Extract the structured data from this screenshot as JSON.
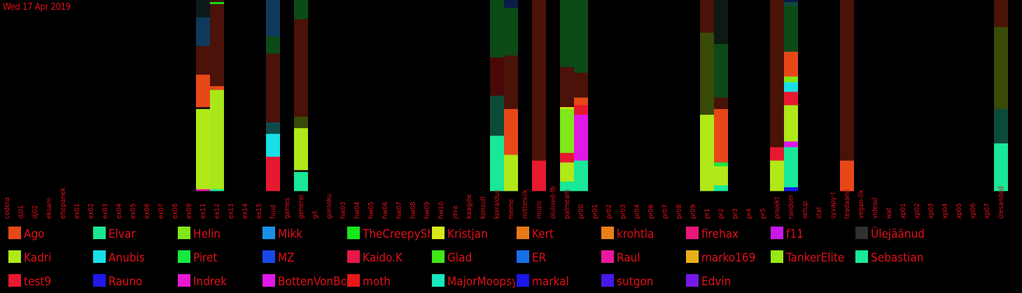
{
  "date": "Wed 17 Apr 2019",
  "chart_data": {
    "type": "bar",
    "stacked": true,
    "normalized_to_100": true,
    "title": "Wed 17 Apr 2019",
    "xlabel": "",
    "ylabel": "",
    "grid": false,
    "legend_position": "bottom",
    "categories": [
      "codera",
      "dj01",
      "dj02",
      "eksam",
      "eltepanek",
      "ex01",
      "ex02",
      "ex03",
      "ex04",
      "ex05",
      "ex06",
      "ex07",
      "ex08",
      "ex09",
      "ex11",
      "ex12",
      "ex13",
      "ex14",
      "ex15",
      "fuud",
      "games",
      "general",
      "git",
      "gomoku",
      "hw03",
      "hw04",
      "hw05",
      "hw06",
      "hw07",
      "hw08",
      "hw09",
      "hw10",
      "java",
      "kaagjõe",
      "konsult",
      "korraldus",
      "meme",
      "mitteniiik",
      "music",
      "olulised-fb",
      "palmeam",
      "pr00",
      "pr01",
      "pr02",
      "pr03",
      "pr04",
      "pr06",
      "pr07",
      "pr08",
      "pr09",
      "pr1",
      "pr2",
      "pr3",
      "pr4",
      "pr5",
      "projekt",
      "random",
      "setup",
      "stat",
      "syvapy-t",
      "teadaand",
      "vegan-tik",
      "videod",
      "wat",
      "xp01",
      "xp02",
      "xp03",
      "xp04",
      "xp05",
      "xp06",
      "xp07",
      "ülesanded"
    ],
    "users": [
      {
        "name": "Ago",
        "color": "#e84818"
      },
      {
        "name": "Elvar",
        "color": "#18e890"
      },
      {
        "name": "Helin",
        "color": "#80e818"
      },
      {
        "name": "Mikk",
        "color": "#1890e8"
      },
      {
        "name": "TheCreepySh",
        "color": "#18e818"
      },
      {
        "name": "Kristjan",
        "color": "#d8e818"
      },
      {
        "name": "Kert",
        "color": "#e87818"
      },
      {
        "name": "krohtla",
        "color": "#e88018"
      },
      {
        "name": "firehax",
        "color": "#e81878"
      },
      {
        "name": "f11",
        "color": "#c818e8"
      },
      {
        "name": "Ülejäänud",
        "color": "#303030"
      },
      {
        "name": "Kadri",
        "color": "#b0e818"
      },
      {
        "name": "Anubis",
        "color": "#18e0e8"
      },
      {
        "name": "Piret",
        "color": "#18e840"
      },
      {
        "name": "MZ",
        "color": "#1848e8"
      },
      {
        "name": "Kaido.K",
        "color": "#e81848"
      },
      {
        "name": "Glad",
        "color": "#40e818"
      },
      {
        "name": "ER",
        "color": "#1870e8"
      },
      {
        "name": "Raul",
        "color": "#e818a0"
      },
      {
        "name": "marko169",
        "color": "#e8b018"
      },
      {
        "name": "TankerElite",
        "color": "#98e818"
      },
      {
        "name": "Sebastian",
        "color": "#18e898"
      },
      {
        "name": "test9",
        "color": "#e81830"
      },
      {
        "name": "Rauno",
        "color": "#2018e8"
      },
      {
        "name": "Indrek",
        "color": "#e818d0"
      },
      {
        "name": "BottenVonBot",
        "color": "#e018e8"
      },
      {
        "name": "moth",
        "color": "#e81818"
      },
      {
        "name": "MajorMoopsy",
        "color": "#18e8c0"
      },
      {
        "name": "markal",
        "color": "#1818e8"
      },
      {
        "name": "sutgon",
        "color": "#4818e8"
      },
      {
        "name": "Edvin",
        "color": "#7818e8"
      }
    ],
    "bars": [
      {
        "category": "ex11",
        "segments": [
          [
            "#e818a0",
            1
          ],
          [
            "#b0e818",
            42
          ],
          [
            "#101010",
            1
          ],
          [
            "#e84818",
            17
          ],
          [
            "#4a1208",
            15
          ],
          [
            "#0f3a5c",
            15
          ],
          [
            "#0c1a1a",
            9
          ]
        ]
      },
      {
        "category": "ex12",
        "segments": [
          [
            "#18e898",
            1
          ],
          [
            "#a8e818",
            52
          ],
          [
            "#e84818",
            2
          ],
          [
            "#4a1208",
            43
          ],
          [
            "#18e818",
            1
          ],
          [
            "#3a1408",
            1
          ]
        ]
      },
      {
        "category": "fuud",
        "segments": [
          [
            "#e81830",
            18
          ],
          [
            "#18e0e8",
            12
          ],
          [
            "#0c4a4a",
            6
          ],
          [
            "#4a1208",
            36
          ],
          [
            "#0c4a18",
            9
          ],
          [
            "#0f3a5c",
            19
          ]
        ]
      },
      {
        "category": "general",
        "segments": [
          [
            "#18e898",
            10
          ],
          [
            "#101010",
            1
          ],
          [
            "#b0e818",
            22
          ],
          [
            "#3a4a08",
            6
          ],
          [
            "#4a1208",
            51
          ],
          [
            "#0c4a18",
            10
          ]
        ]
      },
      {
        "category": "korraldus",
        "segments": [
          [
            "#18e898",
            29
          ],
          [
            "#0c4a3a",
            21
          ],
          [
            "#4a0808",
            20
          ],
          [
            "#0c4a18",
            30
          ]
        ]
      },
      {
        "category": "meme",
        "segments": [
          [
            "#b0e818",
            19
          ],
          [
            "#e84818",
            24
          ],
          [
            "#4a1208",
            28
          ],
          [
            "#0c4a18",
            25
          ],
          [
            "#0c1a4a",
            4
          ]
        ]
      },
      {
        "category": "music",
        "segments": [
          [
            "#e81830",
            16
          ],
          [
            "#4a1208",
            84
          ]
        ]
      },
      {
        "category": "palmeam",
        "segments": [
          [
            "#18e898",
            5
          ],
          [
            "#b0e818",
            10
          ],
          [
            "#e81830",
            5
          ],
          [
            "#80e818",
            23
          ],
          [
            "#d8e818",
            1
          ],
          [
            "#4a1208",
            21
          ],
          [
            "#0c4a18",
            35
          ]
        ]
      },
      {
        "category": "pr00",
        "segments": [
          [
            "#18e898",
            16
          ],
          [
            "#e018e8",
            24
          ],
          [
            "#e81830",
            5
          ],
          [
            "#e84818",
            4
          ],
          [
            "#4a1208",
            13
          ],
          [
            "#0c4a18",
            38
          ]
        ]
      },
      {
        "category": "pr1",
        "segments": [
          [
            "#b0e818",
            40
          ],
          [
            "#3a4a08",
            43
          ],
          [
            "#4a1208",
            17
          ]
        ]
      },
      {
        "category": "pr2",
        "segments": [
          [
            "#18e898",
            3
          ],
          [
            "#b0e818",
            10
          ],
          [
            "#18e840",
            2
          ],
          [
            "#e84818",
            28
          ],
          [
            "#4a1208",
            6
          ],
          [
            "#0c4a18",
            28
          ],
          [
            "#0c1a12",
            23
          ]
        ]
      },
      {
        "category": "projekt",
        "segments": [
          [
            "#b0e818",
            16
          ],
          [
            "#e81830",
            7
          ],
          [
            "#4a1208",
            77
          ]
        ]
      },
      {
        "category": "random",
        "segments": [
          [
            "#1818e8",
            2
          ],
          [
            "#18e898",
            21
          ],
          [
            "#e018e8",
            3
          ],
          [
            "#b0e818",
            19
          ],
          [
            "#e81830",
            7
          ],
          [
            "#18e0e8",
            5
          ],
          [
            "#80e818",
            3
          ],
          [
            "#e84818",
            13
          ],
          [
            "#0c4a18",
            24
          ],
          [
            "#0c4a3a",
            2
          ],
          [
            "#0c1a4a",
            1
          ]
        ]
      },
      {
        "category": "teadaand",
        "segments": [
          [
            "#e84818",
            16
          ],
          [
            "#4a1208",
            84
          ]
        ]
      },
      {
        "category": "ülesanded",
        "segments": [
          [
            "#18e898",
            25
          ],
          [
            "#0c4a3a",
            18
          ],
          [
            "#3a4a08",
            43
          ],
          [
            "#4a1208",
            14
          ]
        ]
      }
    ]
  }
}
